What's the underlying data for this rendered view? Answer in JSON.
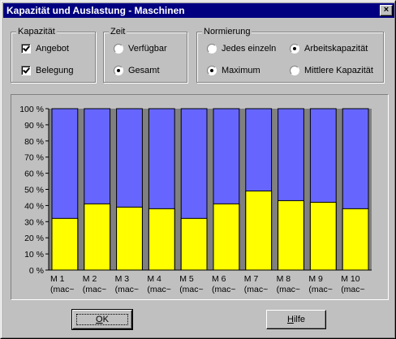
{
  "window": {
    "title": "Kapazität und Auslastung - Maschinen",
    "close_glyph": "×"
  },
  "groups": {
    "kapazitaet": {
      "legend": "Kapazität",
      "options": [
        {
          "label": "Angebot",
          "checked": true
        },
        {
          "label": "Belegung",
          "checked": true
        }
      ]
    },
    "zeit": {
      "legend": "Zeit",
      "options": [
        {
          "label": "Verfügbar",
          "selected": false
        },
        {
          "label": "Gesamt",
          "selected": true
        }
      ]
    },
    "normierung": {
      "legend": "Normierung",
      "options": [
        {
          "label": "Jedes einzeln",
          "selected": false
        },
        {
          "label": "Arbeitskapazität",
          "selected": true
        },
        {
          "label": "Maximum",
          "selected": true
        },
        {
          "label": "Mittlere Kapazität",
          "selected": false
        }
      ]
    }
  },
  "buttons": {
    "ok_label": "OK",
    "ok_mnemonic": "O",
    "hilfe_label": "Hilfe",
    "hilfe_mnemonic": "H"
  },
  "chart_data": {
    "type": "bar",
    "categories": [
      "M 1",
      "M 2",
      "M 3",
      "M 4",
      "M 5",
      "M 6",
      "M 7",
      "M 8",
      "M 9",
      "M 10"
    ],
    "category_sublabel": "(mac~",
    "series": [
      {
        "name": "Angebot",
        "color": "#6666ff",
        "values": [
          100,
          100,
          100,
          100,
          100,
          100,
          100,
          100,
          100,
          100
        ]
      },
      {
        "name": "Belegung",
        "color": "#ffff00",
        "values": [
          32,
          41,
          39,
          38,
          32,
          41,
          49,
          43,
          42,
          38
        ]
      }
    ],
    "ylim": [
      0,
      100
    ],
    "yticks": [
      0,
      10,
      20,
      30,
      40,
      50,
      60,
      70,
      80,
      90,
      100
    ],
    "ytick_labels": [
      "0 %",
      "10 %",
      "20 %",
      "30 %",
      "40 %",
      "50 %",
      "60 %",
      "70 %",
      "80 %",
      "90 %",
      "100 %"
    ],
    "grid": false,
    "legend": "none",
    "plot_background": "#808080"
  }
}
